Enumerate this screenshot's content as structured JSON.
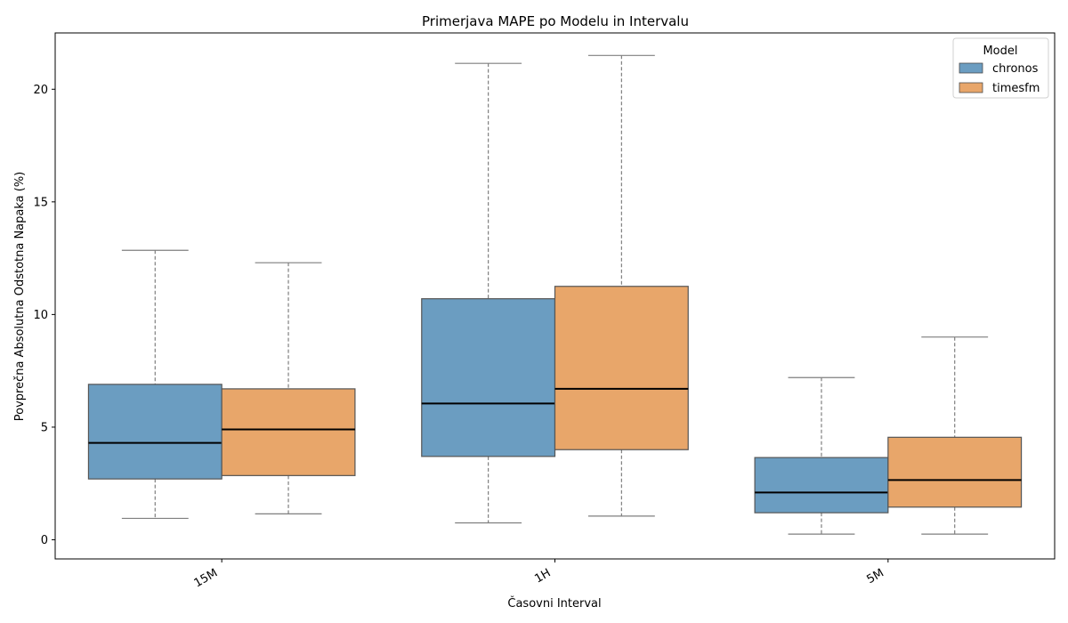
{
  "chart_data": {
    "type": "box",
    "title": "Primerjava MAPE po Modelu in Intervalu",
    "xlabel": "Časovni Interval",
    "ylabel": "Povprečna Absolutna Odstotna Napaka (%)",
    "ylim": [
      -0.85,
      22.5
    ],
    "yticks": [
      0,
      5,
      10,
      15,
      20
    ],
    "categories": [
      "15M",
      "1H",
      "5M"
    ],
    "legend": {
      "title": "Model",
      "placement": "top-right"
    },
    "series": [
      {
        "name": "chronos",
        "color": "#6b9dc1",
        "boxes": [
          {
            "whisker_low": 0.95,
            "q1": 2.7,
            "median": 4.3,
            "q3": 6.9,
            "whisker_high": 12.85
          },
          {
            "whisker_low": 0.75,
            "q1": 3.7,
            "median": 6.05,
            "q3": 10.7,
            "whisker_high": 21.15
          },
          {
            "whisker_low": 0.25,
            "q1": 1.2,
            "median": 2.1,
            "q3": 3.65,
            "whisker_high": 7.2
          }
        ]
      },
      {
        "name": "timesfm",
        "color": "#e8a66a",
        "boxes": [
          {
            "whisker_low": 1.15,
            "q1": 2.85,
            "median": 4.9,
            "q3": 6.7,
            "whisker_high": 12.3
          },
          {
            "whisker_low": 1.05,
            "q1": 4.0,
            "median": 6.7,
            "q3": 11.25,
            "whisker_high": 21.5
          },
          {
            "whisker_low": 0.25,
            "q1": 1.45,
            "median": 2.65,
            "q3": 4.55,
            "whisker_high": 9.0
          }
        ]
      }
    ]
  }
}
